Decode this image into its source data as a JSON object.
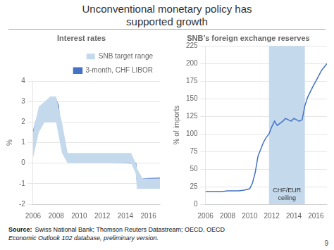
{
  "title": "Unconventional monetary policy has\nsupported growth",
  "source": {
    "label": "Source:",
    "text": "Swiss National Bank; Thomson Reuters Datastream; OECD, OECD",
    "italic": "Economic Outlook 102 database, preliminary version."
  },
  "page_number": "9",
  "chart_data": [
    {
      "type": "line",
      "title": "Interest rates",
      "ylabel": "%",
      "xlim": [
        2006,
        2017
      ],
      "xticks": [
        2006,
        2008,
        2010,
        2012,
        2014,
        2016
      ],
      "ylim": [
        -2,
        4
      ],
      "yticks": [
        -2,
        -1,
        0,
        1,
        2,
        3,
        4
      ],
      "grid": true,
      "legend": "upper right",
      "series": [
        {
          "name": "SNB target range",
          "type": "area",
          "color": "#c5d9ed",
          "x": [
            2006.0,
            2006.5,
            2007.0,
            2007.5,
            2008.0,
            2008.5,
            2009.0,
            2009.3,
            2009.6,
            2010.0,
            2010.5,
            2011.0,
            2011.5,
            2012.0,
            2012.5,
            2013.0,
            2013.5,
            2014.0,
            2014.5,
            2014.9,
            2015.0,
            2015.5,
            2016.0,
            2016.5,
            2017.0
          ],
          "upper": [
            1.5,
            2.75,
            3.0,
            3.25,
            3.25,
            2.0,
            0.5,
            0.5,
            0.5,
            0.5,
            0.5,
            0.5,
            0.5,
            0.5,
            0.5,
            0.5,
            0.5,
            0.5,
            0.5,
            0.0,
            -0.25,
            -0.75,
            -0.75,
            -0.75,
            -0.75
          ],
          "lower": [
            0.25,
            1.5,
            2.0,
            2.0,
            2.0,
            0.5,
            0.0,
            0.0,
            0.0,
            0.0,
            0.0,
            0.0,
            0.0,
            0.0,
            0.0,
            0.0,
            0.0,
            0.0,
            0.0,
            -0.5,
            -1.25,
            -1.25,
            -1.25,
            -1.25,
            -1.25
          ]
        },
        {
          "name": "3-month, CHF LIBOR",
          "type": "line",
          "color": "#4472c4",
          "x": [
            2006.0,
            2006.5,
            2007.0,
            2007.5,
            2008.0,
            2008.2,
            2008.5,
            2009.0,
            2009.5,
            2010.0,
            2010.5,
            2011.0,
            2011.5,
            2012.0,
            2012.5,
            2013.0,
            2013.5,
            2014.0,
            2014.5,
            2014.9,
            2015.0,
            2015.5,
            2016.0,
            2016.5,
            2017.0
          ],
          "values": [
            1.5,
            2.5,
            2.8,
            3.1,
            3.1,
            2.8,
            0.8,
            0.25,
            0.18,
            0.12,
            0.1,
            0.08,
            0.06,
            0.05,
            0.05,
            0.04,
            0.03,
            0.02,
            0.01,
            0.0,
            -0.78,
            -0.77,
            -0.75,
            -0.74,
            -0.73
          ]
        }
      ]
    },
    {
      "type": "line",
      "title": "SNB’s foreign exchange reserves",
      "ylabel": "% of imports",
      "xlim": [
        2006,
        2017
      ],
      "xticks": [
        2006,
        2008,
        2010,
        2012,
        2014,
        2016
      ],
      "ylim": [
        0,
        225
      ],
      "yticks": [
        0,
        25,
        50,
        75,
        100,
        125,
        150,
        175,
        200,
        225
      ],
      "grid": true,
      "color": "#4472c4",
      "x": [
        2006.0,
        2006.5,
        2007.0,
        2007.5,
        2008.0,
        2008.5,
        2009.0,
        2009.5,
        2010.0,
        2010.25,
        2010.5,
        2010.75,
        2011.0,
        2011.25,
        2011.5,
        2011.75,
        2012.0,
        2012.25,
        2012.5,
        2012.75,
        2013.0,
        2013.25,
        2013.5,
        2013.75,
        2014.0,
        2014.25,
        2014.5,
        2014.75,
        2015.0,
        2015.25,
        2015.5,
        2015.75,
        2016.0,
        2016.5,
        2017.0
      ],
      "values": [
        18,
        18,
        18,
        18,
        19,
        19,
        19,
        20,
        22,
        30,
        45,
        68,
        78,
        88,
        95,
        100,
        110,
        118,
        112,
        115,
        118,
        122,
        120,
        118,
        122,
        120,
        118,
        120,
        140,
        152,
        160,
        168,
        175,
        190,
        200
      ],
      "spans": [
        {
          "start": 2011.75,
          "end": 2015.0,
          "color": "#c5d9ed",
          "label": "CHF/EUR\nceiling"
        }
      ]
    }
  ]
}
